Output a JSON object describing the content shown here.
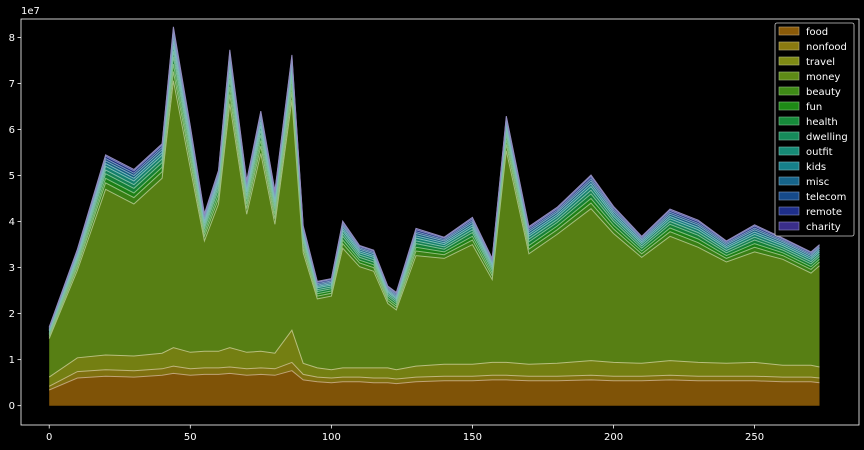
{
  "chart_data": {
    "type": "area",
    "stacked": true,
    "title": "",
    "xlabel": "",
    "ylabel": "",
    "y_offset_label": "1e7",
    "xlim": [
      -10,
      287
    ],
    "ylim": [
      -4200000,
      84000000
    ],
    "x_ticks": [
      0,
      50,
      100,
      150,
      200,
      250
    ],
    "y_ticks": [
      0,
      10000000,
      20000000,
      30000000,
      40000000,
      50000000,
      60000000,
      70000000,
      80000000
    ],
    "y_tick_labels": [
      "0",
      "1",
      "2",
      "3",
      "4",
      "5",
      "6",
      "7",
      "8"
    ],
    "grid": false,
    "legend_position": "top-right",
    "background": "#000000",
    "x": [
      0,
      10,
      20,
      30,
      40,
      44,
      50,
      55,
      60,
      64,
      70,
      75,
      80,
      86,
      90,
      95,
      100,
      104,
      110,
      115,
      120,
      123,
      130,
      140,
      150,
      157,
      162,
      170,
      180,
      192,
      200,
      210,
      220,
      230,
      240,
      250,
      260,
      270,
      273
    ],
    "series": [
      {
        "name": "food",
        "color": "#8a5a08",
        "values": [
          3400000,
          6000000,
          6400000,
          6200000,
          6600000,
          7000000,
          6600000,
          6800000,
          6800000,
          7000000,
          6600000,
          6800000,
          6600000,
          7600000,
          5600000,
          5200000,
          5000000,
          5200000,
          5200000,
          5000000,
          5000000,
          4800000,
          5200000,
          5400000,
          5400000,
          5600000,
          5600000,
          5400000,
          5400000,
          5600000,
          5400000,
          5400000,
          5600000,
          5400000,
          5400000,
          5400000,
          5200000,
          5200000,
          5000000
        ]
      },
      {
        "name": "nonfood",
        "color": "#8a7a10",
        "values": [
          800000,
          1400000,
          1400000,
          1400000,
          1400000,
          1600000,
          1400000,
          1400000,
          1400000,
          1400000,
          1400000,
          1400000,
          1400000,
          1800000,
          1200000,
          1000000,
          1000000,
          1000000,
          1000000,
          1000000,
          1000000,
          1000000,
          1000000,
          1000000,
          1000000,
          1000000,
          1000000,
          1000000,
          1000000,
          1000000,
          1000000,
          1000000,
          1000000,
          1000000,
          1000000,
          1000000,
          1000000,
          1000000,
          1000000
        ]
      },
      {
        "name": "travel",
        "color": "#7e8a14",
        "values": [
          2000000,
          3000000,
          3200000,
          3200000,
          3400000,
          4000000,
          3600000,
          3600000,
          3600000,
          4200000,
          3600000,
          3600000,
          3400000,
          7000000,
          2400000,
          2000000,
          1800000,
          2000000,
          2000000,
          2200000,
          2200000,
          2000000,
          2400000,
          2600000,
          2600000,
          2800000,
          2800000,
          2600000,
          2800000,
          3200000,
          3000000,
          2800000,
          3200000,
          3000000,
          2800000,
          3000000,
          2600000,
          2600000,
          2400000
        ]
      },
      {
        "name": "money",
        "color": "#5e8a16",
        "values": [
          8400000,
          19000000,
          36000000,
          33000000,
          38000000,
          58000000,
          40000000,
          24000000,
          32000000,
          53000000,
          30000000,
          43000000,
          28000000,
          50000000,
          24000000,
          15000000,
          16000000,
          26000000,
          22000000,
          21000000,
          14000000,
          13000000,
          24000000,
          23000000,
          26000000,
          18000000,
          46000000,
          24000000,
          28000000,
          33000000,
          28000000,
          23000000,
          27000000,
          25000000,
          22000000,
          24000000,
          23000000,
          20000000,
          22000000
        ]
      },
      {
        "name": "beauty",
        "color": "#3e8a16",
        "values": [
          400000,
          800000,
          1400000,
          1400000,
          1400000,
          2000000,
          1600000,
          1000000,
          1200000,
          2000000,
          1200000,
          1600000,
          1200000,
          1800000,
          1000000,
          600000,
          600000,
          1000000,
          800000,
          800000,
          600000,
          600000,
          1000000,
          800000,
          1000000,
          800000,
          1400000,
          1000000,
          1000000,
          1200000,
          1000000,
          800000,
          1000000,
          1000000,
          800000,
          1000000,
          800000,
          800000,
          800000
        ]
      },
      {
        "name": "fun",
        "color": "#1e8a16",
        "values": [
          300000,
          600000,
          1000000,
          1000000,
          1000000,
          1600000,
          1200000,
          800000,
          1000000,
          1600000,
          1000000,
          1200000,
          1000000,
          1400000,
          800000,
          500000,
          500000,
          800000,
          600000,
          600000,
          500000,
          500000,
          800000,
          600000,
          800000,
          600000,
          1000000,
          800000,
          800000,
          1000000,
          800000,
          600000,
          800000,
          800000,
          600000,
          800000,
          600000,
          600000,
          600000
        ]
      },
      {
        "name": "health",
        "color": "#168a3a",
        "values": [
          300000,
          600000,
          1000000,
          1000000,
          1000000,
          1600000,
          1200000,
          800000,
          1000000,
          1600000,
          1000000,
          1200000,
          1000000,
          1400000,
          800000,
          500000,
          500000,
          800000,
          600000,
          600000,
          500000,
          500000,
          800000,
          600000,
          800000,
          600000,
          1000000,
          800000,
          800000,
          1000000,
          800000,
          600000,
          800000,
          800000,
          600000,
          800000,
          600000,
          600000,
          600000
        ]
      },
      {
        "name": "dwelling",
        "color": "#168a5a",
        "values": [
          300000,
          500000,
          800000,
          800000,
          800000,
          1200000,
          1000000,
          600000,
          800000,
          1200000,
          800000,
          1000000,
          800000,
          1000000,
          600000,
          400000,
          400000,
          600000,
          500000,
          500000,
          400000,
          400000,
          600000,
          500000,
          600000,
          500000,
          800000,
          600000,
          600000,
          800000,
          600000,
          500000,
          600000,
          600000,
          500000,
          600000,
          500000,
          500000,
          500000
        ]
      },
      {
        "name": "outfit",
        "color": "#168a76",
        "values": [
          300000,
          500000,
          800000,
          800000,
          800000,
          1200000,
          1000000,
          600000,
          800000,
          1200000,
          800000,
          1000000,
          800000,
          1000000,
          600000,
          400000,
          400000,
          600000,
          500000,
          500000,
          400000,
          400000,
          600000,
          500000,
          600000,
          500000,
          800000,
          600000,
          600000,
          800000,
          600000,
          500000,
          600000,
          600000,
          500000,
          600000,
          500000,
          500000,
          500000
        ]
      },
      {
        "name": "kids",
        "color": "#16808a",
        "values": [
          200000,
          400000,
          600000,
          600000,
          600000,
          1000000,
          800000,
          500000,
          600000,
          1000000,
          600000,
          800000,
          600000,
          800000,
          500000,
          300000,
          300000,
          500000,
          400000,
          400000,
          300000,
          300000,
          500000,
          400000,
          500000,
          400000,
          600000,
          500000,
          500000,
          600000,
          500000,
          400000,
          500000,
          500000,
          400000,
          500000,
          400000,
          400000,
          400000
        ]
      },
      {
        "name": "misc",
        "color": "#16648a",
        "values": [
          200000,
          400000,
          600000,
          600000,
          600000,
          1000000,
          800000,
          500000,
          600000,
          1000000,
          600000,
          800000,
          600000,
          800000,
          500000,
          300000,
          300000,
          500000,
          400000,
          400000,
          300000,
          300000,
          500000,
          400000,
          500000,
          400000,
          600000,
          500000,
          500000,
          600000,
          500000,
          400000,
          500000,
          500000,
          400000,
          500000,
          400000,
          400000,
          400000
        ]
      },
      {
        "name": "telecom",
        "color": "#164a8a",
        "values": [
          200000,
          300000,
          500000,
          500000,
          500000,
          800000,
          600000,
          400000,
          500000,
          800000,
          500000,
          600000,
          500000,
          600000,
          400000,
          300000,
          300000,
          400000,
          300000,
          300000,
          300000,
          300000,
          400000,
          300000,
          400000,
          300000,
          500000,
          400000,
          400000,
          500000,
          400000,
          300000,
          400000,
          400000,
          300000,
          400000,
          300000,
          300000,
          300000
        ]
      },
      {
        "name": "remote",
        "color": "#1e2e8a",
        "values": [
          200000,
          300000,
          500000,
          500000,
          500000,
          800000,
          600000,
          400000,
          500000,
          800000,
          500000,
          600000,
          500000,
          600000,
          400000,
          300000,
          300000,
          400000,
          300000,
          300000,
          300000,
          300000,
          400000,
          300000,
          400000,
          300000,
          500000,
          400000,
          400000,
          500000,
          400000,
          300000,
          400000,
          400000,
          300000,
          400000,
          300000,
          300000,
          300000
        ]
      },
      {
        "name": "charity",
        "color": "#3a2e8a",
        "values": [
          100000,
          200000,
          300000,
          300000,
          300000,
          500000,
          400000,
          300000,
          300000,
          500000,
          300000,
          400000,
          300000,
          400000,
          300000,
          200000,
          200000,
          300000,
          200000,
          200000,
          200000,
          200000,
          300000,
          200000,
          300000,
          200000,
          300000,
          300000,
          300000,
          300000,
          300000,
          200000,
          300000,
          300000,
          200000,
          300000,
          200000,
          200000,
          200000
        ]
      }
    ]
  }
}
